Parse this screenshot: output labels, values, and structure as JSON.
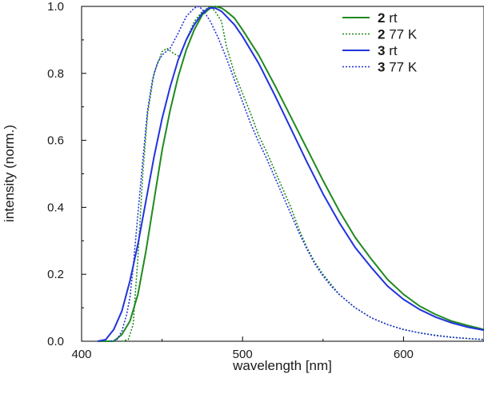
{
  "chart_data": {
    "type": "line",
    "title": "",
    "xlabel": "wavelength [nm]",
    "ylabel": "intensity (norm.)",
    "xlim": [
      400,
      650
    ],
    "ylim": [
      0,
      1.0
    ],
    "xticks": [
      400,
      500,
      600
    ],
    "xtick_labels": [
      "400",
      "500",
      "600"
    ],
    "yticks": [
      0,
      0.2,
      0.4,
      0.6,
      0.8,
      1.0
    ],
    "ytick_labels": [
      "0.0",
      "0.2",
      "0.4",
      "0.6",
      "0.8",
      "1.0"
    ],
    "legend_position": "top-right",
    "series": [
      {
        "id": "s2rt",
        "compound": "2",
        "condition": "rt",
        "color": "#1f8a1f",
        "dashed": false,
        "points": [
          [
            410,
            0
          ],
          [
            420,
            0
          ],
          [
            425,
            0.02
          ],
          [
            430,
            0.06
          ],
          [
            435,
            0.14
          ],
          [
            440,
            0.27
          ],
          [
            445,
            0.42
          ],
          [
            450,
            0.57
          ],
          [
            455,
            0.69
          ],
          [
            460,
            0.79
          ],
          [
            465,
            0.87
          ],
          [
            470,
            0.93
          ],
          [
            475,
            0.975
          ],
          [
            480,
            0.995
          ],
          [
            483,
            1.0
          ],
          [
            487,
            0.995
          ],
          [
            490,
            0.985
          ],
          [
            495,
            0.965
          ],
          [
            500,
            0.93
          ],
          [
            510,
            0.855
          ],
          [
            520,
            0.765
          ],
          [
            530,
            0.67
          ],
          [
            540,
            0.575
          ],
          [
            550,
            0.48
          ],
          [
            560,
            0.39
          ],
          [
            570,
            0.31
          ],
          [
            580,
            0.245
          ],
          [
            590,
            0.185
          ],
          [
            600,
            0.14
          ],
          [
            610,
            0.105
          ],
          [
            620,
            0.08
          ],
          [
            630,
            0.06
          ],
          [
            640,
            0.047
          ],
          [
            650,
            0.035
          ]
        ]
      },
      {
        "id": "s277",
        "compound": "2",
        "condition": "77 K",
        "color": "#1f8a1f",
        "dashed": true,
        "points": [
          [
            425,
            0
          ],
          [
            429,
            0.005
          ],
          [
            432,
            0.05
          ],
          [
            435,
            0.25
          ],
          [
            438,
            0.5
          ],
          [
            441,
            0.68
          ],
          [
            445,
            0.8
          ],
          [
            450,
            0.865
          ],
          [
            453,
            0.875
          ],
          [
            457,
            0.86
          ],
          [
            461,
            0.85
          ],
          [
            465,
            0.9
          ],
          [
            470,
            0.955
          ],
          [
            475,
            0.985
          ],
          [
            480,
            1.0
          ],
          [
            483,
            0.985
          ],
          [
            487,
            0.955
          ],
          [
            490,
            0.88
          ],
          [
            495,
            0.8
          ],
          [
            500,
            0.74
          ],
          [
            505,
            0.68
          ],
          [
            510,
            0.615
          ],
          [
            515,
            0.565
          ],
          [
            520,
            0.51
          ],
          [
            525,
            0.455
          ],
          [
            530,
            0.4
          ],
          [
            535,
            0.335
          ],
          [
            540,
            0.28
          ],
          [
            545,
            0.235
          ],
          [
            550,
            0.2
          ],
          [
            555,
            0.17
          ],
          [
            560,
            0.14
          ],
          [
            570,
            0.1
          ],
          [
            580,
            0.07
          ],
          [
            590,
            0.05
          ],
          [
            600,
            0.035
          ],
          [
            610,
            0.025
          ],
          [
            620,
            0.018
          ],
          [
            630,
            0.012
          ],
          [
            640,
            0.008
          ],
          [
            650,
            0.005
          ]
        ]
      },
      {
        "id": "s3rt",
        "compound": "3",
        "condition": "rt",
        "color": "#2233dd",
        "dashed": false,
        "points": [
          [
            410,
            0
          ],
          [
            415,
            0.005
          ],
          [
            420,
            0.035
          ],
          [
            425,
            0.09
          ],
          [
            430,
            0.18
          ],
          [
            435,
            0.29
          ],
          [
            440,
            0.42
          ],
          [
            445,
            0.55
          ],
          [
            450,
            0.665
          ],
          [
            455,
            0.76
          ],
          [
            460,
            0.84
          ],
          [
            465,
            0.9
          ],
          [
            470,
            0.945
          ],
          [
            475,
            0.98
          ],
          [
            479,
            0.995
          ],
          [
            483,
            0.995
          ],
          [
            487,
            0.985
          ],
          [
            490,
            0.97
          ],
          [
            495,
            0.945
          ],
          [
            500,
            0.91
          ],
          [
            510,
            0.83
          ],
          [
            520,
            0.735
          ],
          [
            530,
            0.635
          ],
          [
            540,
            0.535
          ],
          [
            550,
            0.44
          ],
          [
            560,
            0.355
          ],
          [
            570,
            0.28
          ],
          [
            580,
            0.22
          ],
          [
            590,
            0.165
          ],
          [
            600,
            0.125
          ],
          [
            610,
            0.095
          ],
          [
            620,
            0.072
          ],
          [
            630,
            0.055
          ],
          [
            640,
            0.042
          ],
          [
            650,
            0.033
          ]
        ]
      },
      {
        "id": "s377",
        "compound": "3",
        "condition": "77 K",
        "color": "#2233dd",
        "dashed": true,
        "points": [
          [
            418,
            0
          ],
          [
            422,
            0.005
          ],
          [
            425,
            0.03
          ],
          [
            428,
            0.08
          ],
          [
            430,
            0.13
          ],
          [
            432,
            0.22
          ],
          [
            435,
            0.38
          ],
          [
            438,
            0.54
          ],
          [
            441,
            0.69
          ],
          [
            444,
            0.78
          ],
          [
            447,
            0.83
          ],
          [
            450,
            0.855
          ],
          [
            455,
            0.875
          ],
          [
            460,
            0.92
          ],
          [
            465,
            0.97
          ],
          [
            470,
            0.995
          ],
          [
            473,
            1.0
          ],
          [
            476,
            0.985
          ],
          [
            480,
            0.955
          ],
          [
            485,
            0.905
          ],
          [
            490,
            0.845
          ],
          [
            495,
            0.78
          ],
          [
            500,
            0.715
          ],
          [
            505,
            0.65
          ],
          [
            510,
            0.595
          ],
          [
            515,
            0.545
          ],
          [
            520,
            0.49
          ],
          [
            525,
            0.435
          ],
          [
            530,
            0.38
          ],
          [
            535,
            0.325
          ],
          [
            540,
            0.275
          ],
          [
            545,
            0.23
          ],
          [
            550,
            0.195
          ],
          [
            555,
            0.165
          ],
          [
            560,
            0.14
          ],
          [
            570,
            0.1
          ],
          [
            580,
            0.07
          ],
          [
            590,
            0.05
          ],
          [
            600,
            0.035
          ],
          [
            610,
            0.025
          ],
          [
            620,
            0.017
          ],
          [
            630,
            0.012
          ],
          [
            640,
            0.008
          ],
          [
            650,
            0.005
          ]
        ]
      }
    ]
  },
  "legend": [
    {
      "series": "s2rt",
      "bold": "2",
      "text": " rt"
    },
    {
      "series": "s277",
      "bold": "2",
      "text": "77 K"
    },
    {
      "series": "s3rt",
      "bold": "3",
      "text": " rt"
    },
    {
      "series": "s377",
      "bold": "3",
      "text": "77 K"
    }
  ]
}
